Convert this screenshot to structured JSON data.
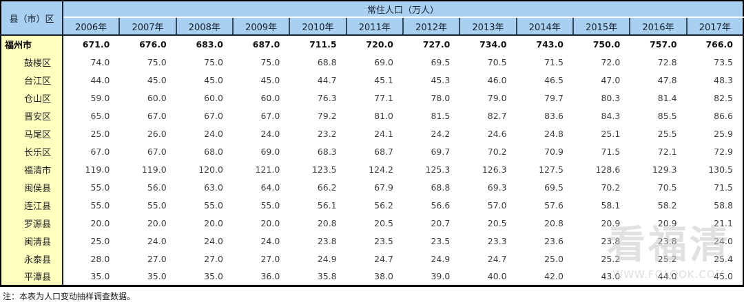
{
  "chart_data": {
    "type": "table",
    "title": "常住人口（万人）",
    "row_header_label": "县（市）区",
    "columns": [
      "2006年",
      "2007年",
      "2008年",
      "2009年",
      "2010年",
      "2011年",
      "2012年",
      "2013年",
      "2014年",
      "2015年",
      "2016年",
      "2017年"
    ],
    "rows": [
      {
        "name": "福州市",
        "bold": true,
        "values": [
          "671.0",
          "676.0",
          "683.0",
          "687.0",
          "711.5",
          "720.0",
          "727.0",
          "734.0",
          "743.0",
          "750.0",
          "757.0",
          "766.0"
        ]
      },
      {
        "name": "鼓楼区",
        "bold": false,
        "values": [
          "74.0",
          "75.0",
          "75.0",
          "75.0",
          "68.8",
          "69.0",
          "69.5",
          "70.5",
          "71.5",
          "72.0",
          "72.8",
          "73.5"
        ]
      },
      {
        "name": "台江区",
        "bold": false,
        "values": [
          "44.0",
          "45.0",
          "45.0",
          "45.0",
          "44.7",
          "45.1",
          "45.3",
          "46.0",
          "46.5",
          "47.0",
          "47.8",
          "48.3"
        ]
      },
      {
        "name": "仓山区",
        "bold": false,
        "values": [
          "59.0",
          "60.0",
          "60.0",
          "60.0",
          "76.3",
          "77.1",
          "78.0",
          "79.0",
          "79.7",
          "80.3",
          "81.4",
          "82.5"
        ]
      },
      {
        "name": "晋安区",
        "bold": false,
        "values": [
          "65.0",
          "67.0",
          "67.0",
          "67.0",
          "79.2",
          "81.0",
          "81.5",
          "82.7",
          "83.6",
          "84.3",
          "85.5",
          "86.6"
        ]
      },
      {
        "name": "马尾区",
        "bold": false,
        "values": [
          "25.0",
          "26.0",
          "24.0",
          "24.0",
          "23.2",
          "24.1",
          "24.2",
          "24.6",
          "24.8",
          "25.1",
          "25.5",
          "25.9"
        ]
      },
      {
        "name": "长乐区",
        "bold": false,
        "values": [
          "67.0",
          "67.0",
          "68.0",
          "69.0",
          "68.3",
          "68.7",
          "69.7",
          "70.2",
          "70.9",
          "71.5",
          "72.1",
          "72.9"
        ]
      },
      {
        "name": "福清市",
        "bold": false,
        "values": [
          "119.0",
          "119.0",
          "120.0",
          "121.0",
          "123.5",
          "124.2",
          "125.3",
          "126.3",
          "127.5",
          "128.6",
          "129.3",
          "130.5"
        ]
      },
      {
        "name": "闽侯县",
        "bold": false,
        "values": [
          "55.0",
          "56.0",
          "63.0",
          "64.0",
          "66.2",
          "67.9",
          "68.8",
          "69.3",
          "69.5",
          "70.2",
          "70.5",
          "71.5"
        ]
      },
      {
        "name": "连江县",
        "bold": false,
        "values": [
          "55.0",
          "55.0",
          "55.0",
          "55.0",
          "56.1",
          "56.2",
          "56.6",
          "57.0",
          "57.6",
          "58.1",
          "58.2",
          "58.8"
        ]
      },
      {
        "name": "罗源县",
        "bold": false,
        "values": [
          "20.0",
          "20.0",
          "20.0",
          "20.0",
          "20.8",
          "20.5",
          "20.7",
          "20.5",
          "20.8",
          "20.9",
          "20.9",
          "21.1"
        ]
      },
      {
        "name": "闽清县",
        "bold": false,
        "values": [
          "25.0",
          "24.0",
          "24.0",
          "24.0",
          "23.8",
          "23.5",
          "23.5",
          "23.3",
          "23.6",
          "23.8",
          "23.8",
          "24.0"
        ]
      },
      {
        "name": "永泰县",
        "bold": false,
        "values": [
          "28.0",
          "27.0",
          "27.0",
          "27.0",
          "24.9",
          "24.7",
          "24.9",
          "24.7",
          "25.0",
          "25.2",
          "25.2",
          "25.4"
        ]
      },
      {
        "name": "平潭县",
        "bold": false,
        "values": [
          "35.0",
          "35.0",
          "35.0",
          "36.0",
          "35.8",
          "38.0",
          "39.0",
          "40.0",
          "42.0",
          "43.0",
          "44.0",
          "45.0"
        ]
      }
    ]
  },
  "note": "注：本表为人口变动抽样调查数据。",
  "watermark": {
    "title": "看福清",
    "url": "WWW.FQLOOK.COM"
  },
  "colors": {
    "header_blue": "#A9CFF1",
    "label_yellow": "#FFFFBE",
    "border_black": "#000000",
    "header_divider_blue": "#33475E"
  }
}
